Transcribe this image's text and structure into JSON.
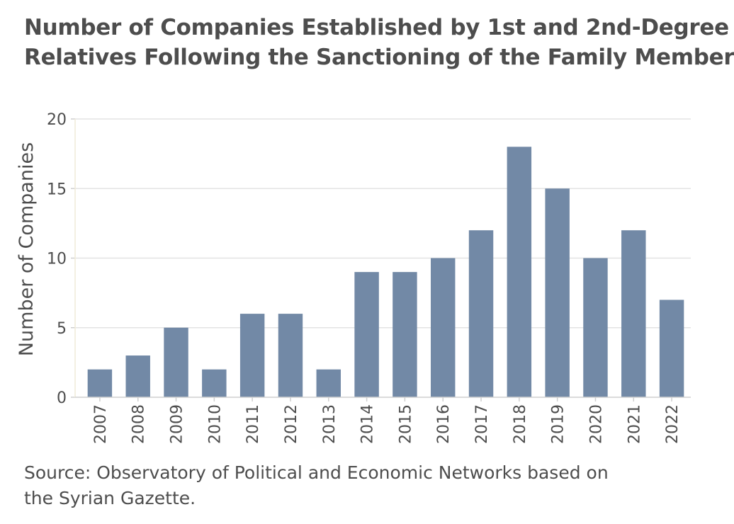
{
  "title": {
    "line1": "Number of Companies Established by 1st and 2nd-Degree",
    "line2": "Relatives Following the Sanctioning of the Family Member"
  },
  "source": {
    "line1": "Source: Observatory of Political and Economic Networks based on",
    "line2": "the Syrian Gazette."
  },
  "colors": {
    "bar": "#7289a6",
    "grid": "#e3e3e3",
    "axis": "#cfcfcf",
    "text": "#4d4d4d"
  },
  "chart_data": {
    "type": "bar",
    "title": "Number of Companies Established by 1st and 2nd-Degree Relatives Following the Sanctioning of the Family Member",
    "xlabel": "",
    "ylabel": "Number of Companies",
    "categories": [
      "2007",
      "2008",
      "2009",
      "2010",
      "2011",
      "2012",
      "2013",
      "2014",
      "2015",
      "2016",
      "2017",
      "2018",
      "2019",
      "2020",
      "2021",
      "2022"
    ],
    "values": [
      2,
      3,
      5,
      2,
      6,
      6,
      2,
      9,
      9,
      10,
      12,
      18,
      15,
      10,
      12,
      7
    ],
    "ylim": [
      0,
      20
    ],
    "yticks": [
      0,
      5,
      10,
      15,
      20
    ],
    "grid": true,
    "legend": "none"
  }
}
